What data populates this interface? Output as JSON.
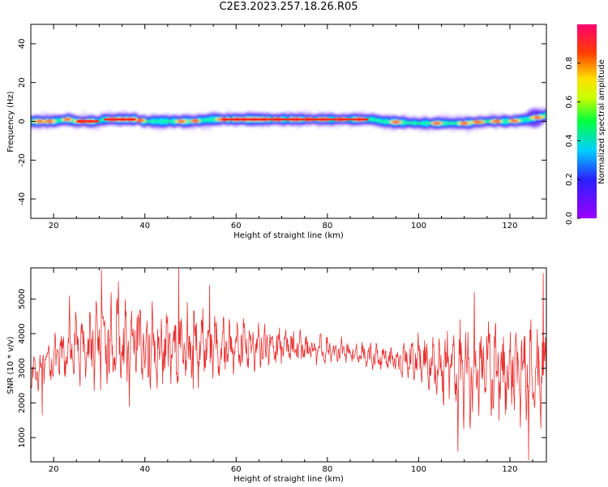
{
  "title": "C2E3.2023.257.18.26.R05",
  "colors": {
    "snr_line": "#e83030",
    "axis": "#000000",
    "background": "#ffffff"
  },
  "chart_data": [
    {
      "type": "heatmap",
      "xlabel": "Height of straight line (km)",
      "ylabel": "Frequency (Hz)",
      "xlim": [
        15,
        128
      ],
      "ylim": [
        -50,
        50
      ],
      "x_ticks": [
        20,
        40,
        60,
        80,
        100,
        120
      ],
      "y_ticks": [
        -40,
        -20,
        0,
        20,
        40
      ],
      "colorbar": {
        "label": "Normalized spectral amplitude",
        "range": [
          0,
          1
        ],
        "ticks": [
          "0.0",
          "0.2",
          "0.4",
          "0.6",
          "0.8"
        ],
        "colormap": "rainbow (purple → red)"
      },
      "ridge": [
        {
          "x": 15,
          "f": 0
        },
        {
          "x": 20,
          "f": 0
        },
        {
          "x": 23,
          "f": 1
        },
        {
          "x": 25,
          "f": 0
        },
        {
          "x": 30,
          "f": 0
        },
        {
          "x": 31,
          "f": 1
        },
        {
          "x": 38,
          "f": 1
        },
        {
          "x": 40,
          "f": 0
        },
        {
          "x": 50,
          "f": 0
        },
        {
          "x": 55,
          "f": 1
        },
        {
          "x": 70,
          "f": 1
        },
        {
          "x": 90,
          "f": 1
        },
        {
          "x": 92,
          "f": 0
        },
        {
          "x": 100,
          "f": -1
        },
        {
          "x": 110,
          "f": -1
        },
        {
          "x": 115,
          "f": 0
        },
        {
          "x": 120,
          "f": 0
        },
        {
          "x": 124,
          "f": 1
        },
        {
          "x": 128,
          "f": 3
        }
      ],
      "peaks": [
        17,
        19,
        23,
        26,
        28,
        33,
        35,
        37,
        39,
        48,
        51,
        57,
        60,
        62,
        64,
        66,
        69,
        73,
        76,
        79,
        83,
        87,
        95,
        104,
        110,
        113,
        117,
        121,
        126
      ]
    },
    {
      "type": "line",
      "xlabel": "Height of straight line (km)",
      "ylabel": "SNR (10 * v/v)",
      "xlim": [
        15,
        128
      ],
      "ylim": [
        300,
        5900
      ],
      "x_ticks": [
        20,
        40,
        60,
        80,
        100,
        120
      ],
      "y_ticks": [
        1000,
        2000,
        3000,
        4000,
        5000
      ],
      "envelope": [
        {
          "x": 15,
          "c": 2800,
          "a": 600
        },
        {
          "x": 18,
          "c": 3100,
          "a": 500
        },
        {
          "x": 25,
          "c": 3600,
          "a": 900
        },
        {
          "x": 30,
          "c": 3700,
          "a": 1300
        },
        {
          "x": 40,
          "c": 3600,
          "a": 1200
        },
        {
          "x": 47,
          "c": 3600,
          "a": 1300
        },
        {
          "x": 55,
          "c": 3700,
          "a": 900
        },
        {
          "x": 65,
          "c": 3650,
          "a": 650
        },
        {
          "x": 75,
          "c": 3600,
          "a": 450
        },
        {
          "x": 85,
          "c": 3450,
          "a": 350
        },
        {
          "x": 95,
          "c": 3250,
          "a": 400
        },
        {
          "x": 100,
          "c": 3200,
          "a": 750
        },
        {
          "x": 105,
          "c": 3000,
          "a": 900
        },
        {
          "x": 110,
          "c": 2900,
          "a": 1500
        },
        {
          "x": 115,
          "c": 3000,
          "a": 1400
        },
        {
          "x": 120,
          "c": 2900,
          "a": 1300
        },
        {
          "x": 125,
          "c": 2900,
          "a": 1300
        },
        {
          "x": 128,
          "c": 2900,
          "a": 1400
        }
      ],
      "extremes": [
        {
          "x": 17.5,
          "y": 1650
        },
        {
          "x": 23.5,
          "y": 5100
        },
        {
          "x": 30.5,
          "y": 5850
        },
        {
          "x": 34.2,
          "y": 5500
        },
        {
          "x": 36.6,
          "y": 1900
        },
        {
          "x": 47.4,
          "y": 5900
        },
        {
          "x": 50.6,
          "y": 2400
        },
        {
          "x": 54.2,
          "y": 5400
        },
        {
          "x": 108.6,
          "y": 600
        },
        {
          "x": 112.2,
          "y": 5200
        },
        {
          "x": 124.1,
          "y": 350
        },
        {
          "x": 127.3,
          "y": 5750
        }
      ]
    }
  ]
}
